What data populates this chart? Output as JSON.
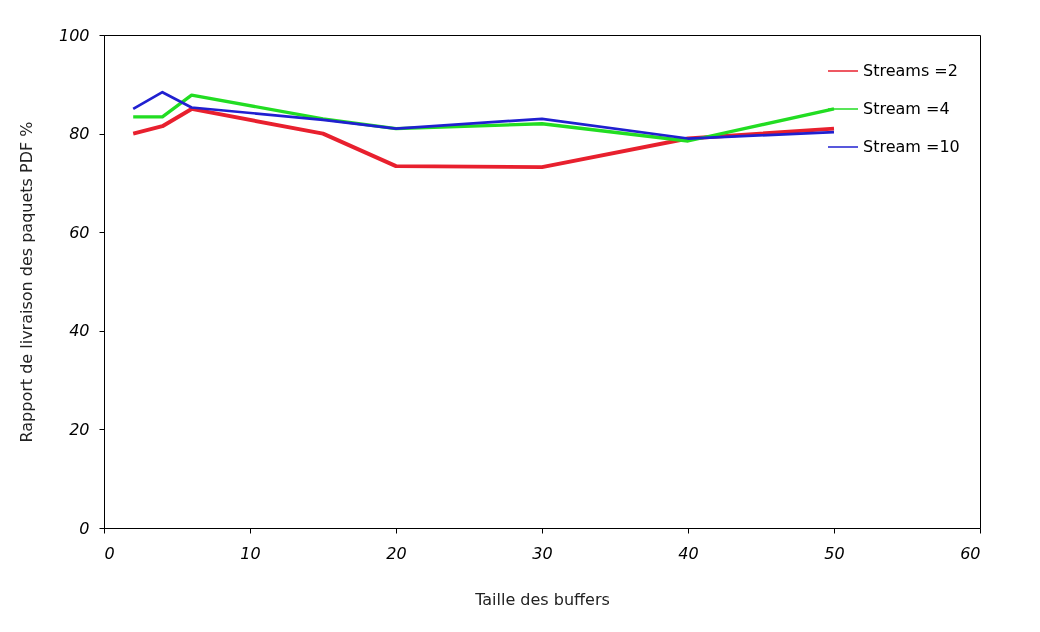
{
  "chart_data": {
    "type": "line",
    "xlabel": "Taille des buffers",
    "ylabel": "Rapport de livraison des paquets PDF %",
    "x": [
      2,
      4,
      6,
      15,
      20,
      30,
      40,
      50
    ],
    "series": [
      {
        "name": "Streams =2",
        "color": "#e8202e",
        "values": [
          80,
          81.5,
          85,
          80,
          73.4,
          73.2,
          79,
          81
        ]
      },
      {
        "name": "Stream =4",
        "color": "#22dd22",
        "values": [
          83.4,
          83.4,
          87.8,
          83,
          81,
          82,
          78.5,
          85
        ]
      },
      {
        "name": "Stream =10",
        "color": "#2020d0",
        "values": [
          85,
          88.4,
          85.3,
          82.8,
          81,
          83,
          79,
          80.3
        ]
      }
    ],
    "xlim": [
      0,
      60
    ],
    "xticks": [
      0,
      10,
      20,
      30,
      40,
      50,
      60
    ],
    "ylim": [
      0,
      100
    ],
    "yticks": [
      0,
      20,
      40,
      60,
      80,
      100
    ],
    "legend": "top right",
    "grid": false,
    "marker": "none",
    "line_style": "solid"
  }
}
